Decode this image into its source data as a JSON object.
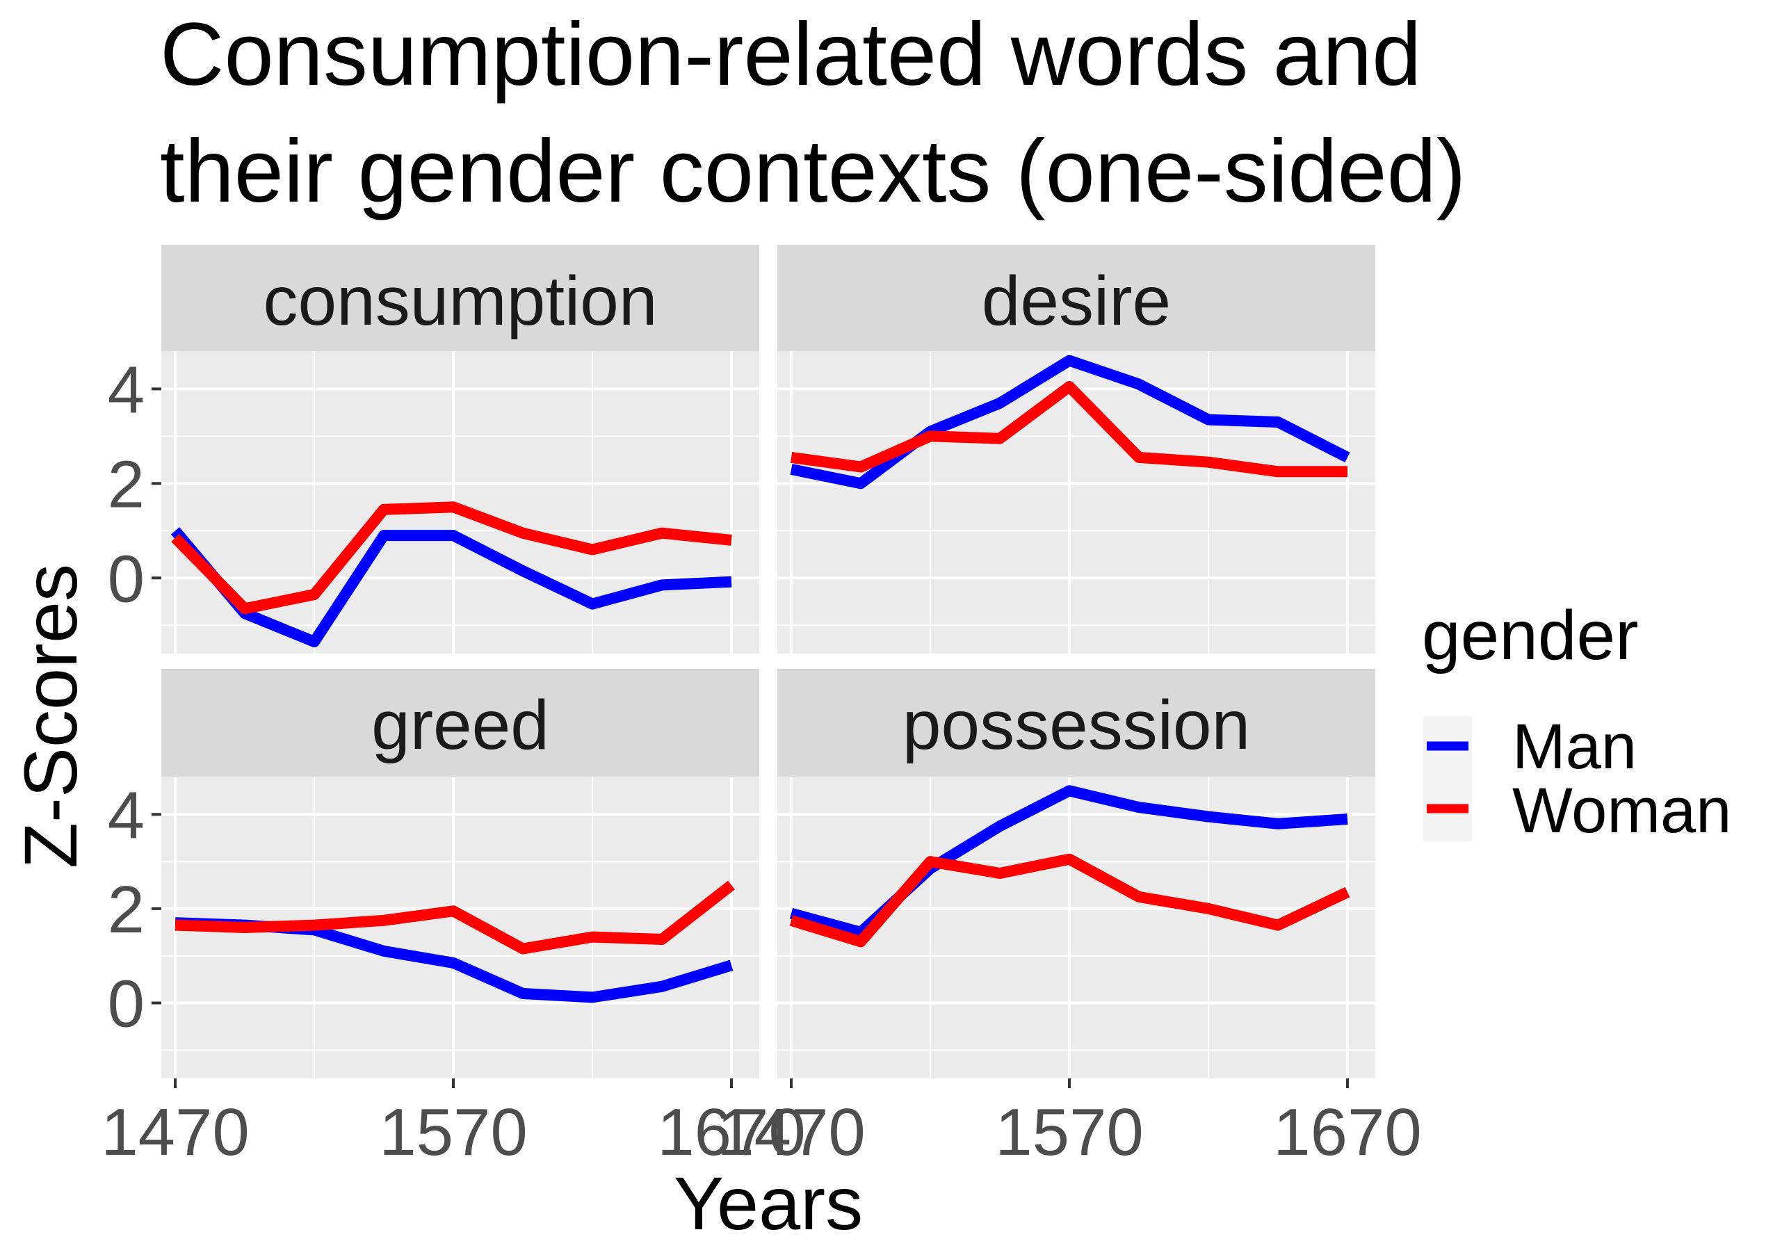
{
  "chart_data": {
    "type": "line",
    "title_lines": [
      "Consumption-related words and",
      "their gender contexts (one-sided)"
    ],
    "xlabel": "Years",
    "ylabel": "Z-Scores",
    "x": [
      1470,
      1495,
      1520,
      1545,
      1570,
      1595,
      1620,
      1645,
      1670
    ],
    "x_ticks": [
      1470,
      1570,
      1670
    ],
    "y_ticks": [
      0,
      2,
      4
    ],
    "xlim": [
      1465,
      1680
    ],
    "ylim": [
      -1.6,
      4.8
    ],
    "grid": true,
    "legend": {
      "title": "gender",
      "placement": "right",
      "entries": [
        {
          "name": "Man",
          "color": "#0000ff"
        },
        {
          "name": "Woman",
          "color": "#ff0000"
        }
      ]
    },
    "colors": {
      "panel_bg": "#ebebeb",
      "strip_bg": "#d9d9d9",
      "grid": "#ffffff",
      "tick_text": "#4d4d4d",
      "strip_text": "#1a1a1a"
    },
    "panels": [
      {
        "name": "consumption",
        "series": [
          {
            "name": "Man",
            "values": [
              1.0,
              -0.75,
              -1.35,
              0.9,
              0.9,
              0.15,
              -0.55,
              -0.15,
              -0.08
            ]
          },
          {
            "name": "Woman",
            "values": [
              0.85,
              -0.65,
              -0.35,
              1.45,
              1.5,
              0.95,
              0.6,
              0.95,
              0.8
            ]
          }
        ]
      },
      {
        "name": "desire",
        "series": [
          {
            "name": "Man",
            "values": [
              2.3,
              2.0,
              3.1,
              3.7,
              4.6,
              4.1,
              3.35,
              3.3,
              2.55
            ]
          },
          {
            "name": "Woman",
            "values": [
              2.55,
              2.35,
              3.0,
              2.95,
              4.05,
              2.55,
              2.45,
              2.25,
              2.25
            ]
          }
        ]
      },
      {
        "name": "greed",
        "series": [
          {
            "name": "Man",
            "values": [
              1.7,
              1.65,
              1.55,
              1.1,
              0.85,
              0.2,
              0.12,
              0.35,
              0.8
            ]
          },
          {
            "name": "Woman",
            "values": [
              1.65,
              1.6,
              1.65,
              1.75,
              1.95,
              1.15,
              1.4,
              1.35,
              2.5
            ]
          }
        ]
      },
      {
        "name": "possession",
        "series": [
          {
            "name": "Man",
            "values": [
              1.9,
              1.5,
              2.85,
              3.75,
              4.5,
              4.15,
              3.95,
              3.8,
              3.9
            ]
          },
          {
            "name": "Woman",
            "values": [
              1.75,
              1.3,
              3.0,
              2.75,
              3.05,
              2.25,
              2.0,
              1.65,
              2.35
            ]
          }
        ]
      }
    ]
  }
}
